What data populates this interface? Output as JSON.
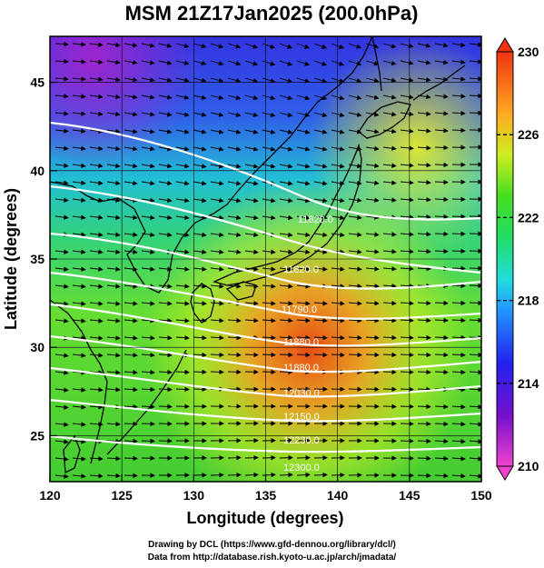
{
  "title": "MSM 21Z17Jan2025 (200.0hPa)",
  "x_axis": {
    "label": "Longitude (degrees)",
    "ticks": [
      {
        "value": 120,
        "label": "120"
      },
      {
        "value": 125,
        "label": "125"
      },
      {
        "value": 130,
        "label": "130"
      },
      {
        "value": 135,
        "label": "135"
      },
      {
        "value": 140,
        "label": "140"
      },
      {
        "value": 145,
        "label": "145"
      },
      {
        "value": 150,
        "label": "150"
      }
    ],
    "range": [
      120,
      150
    ]
  },
  "y_axis": {
    "label": "Latitude (degrees)",
    "ticks": [
      {
        "value": 25,
        "label": "25"
      },
      {
        "value": 30,
        "label": "30"
      },
      {
        "value": 35,
        "label": "35"
      },
      {
        "value": 40,
        "label": "40"
      },
      {
        "value": 45,
        "label": "45"
      }
    ],
    "range": [
      22.4,
      47.6
    ]
  },
  "colorbar": {
    "range": [
      210,
      230
    ],
    "ticks": [
      {
        "value": 210,
        "label": "210"
      },
      {
        "value": 214,
        "label": "214"
      },
      {
        "value": 218,
        "label": "218"
      },
      {
        "value": 222,
        "label": "222"
      },
      {
        "value": 226,
        "label": "226"
      },
      {
        "value": 230,
        "label": "230"
      }
    ]
  },
  "contours": [
    {
      "label": "11820.0"
    },
    {
      "label": "11820.0"
    },
    {
      "label": "11790.0"
    },
    {
      "label": "11880.0"
    },
    {
      "label": "11880.0"
    },
    {
      "label": "12030.0"
    },
    {
      "label": "12150.0"
    },
    {
      "label": "12230.0"
    },
    {
      "label": "12300.0"
    }
  ],
  "credits": {
    "line1": "Drawing by DCL (https://www.gfd-dennou.org/library/dcl/)",
    "line2": "Data from http://database.rish.kyoto-u.ac.jp/arch/jmadata/"
  },
  "colors": {
    "low": "#cc00cc",
    "mid_low": "#1a33ff",
    "mid": "#22cc22",
    "high": "#dd3300",
    "contour": "#ffffff",
    "coast": "#000000"
  }
}
